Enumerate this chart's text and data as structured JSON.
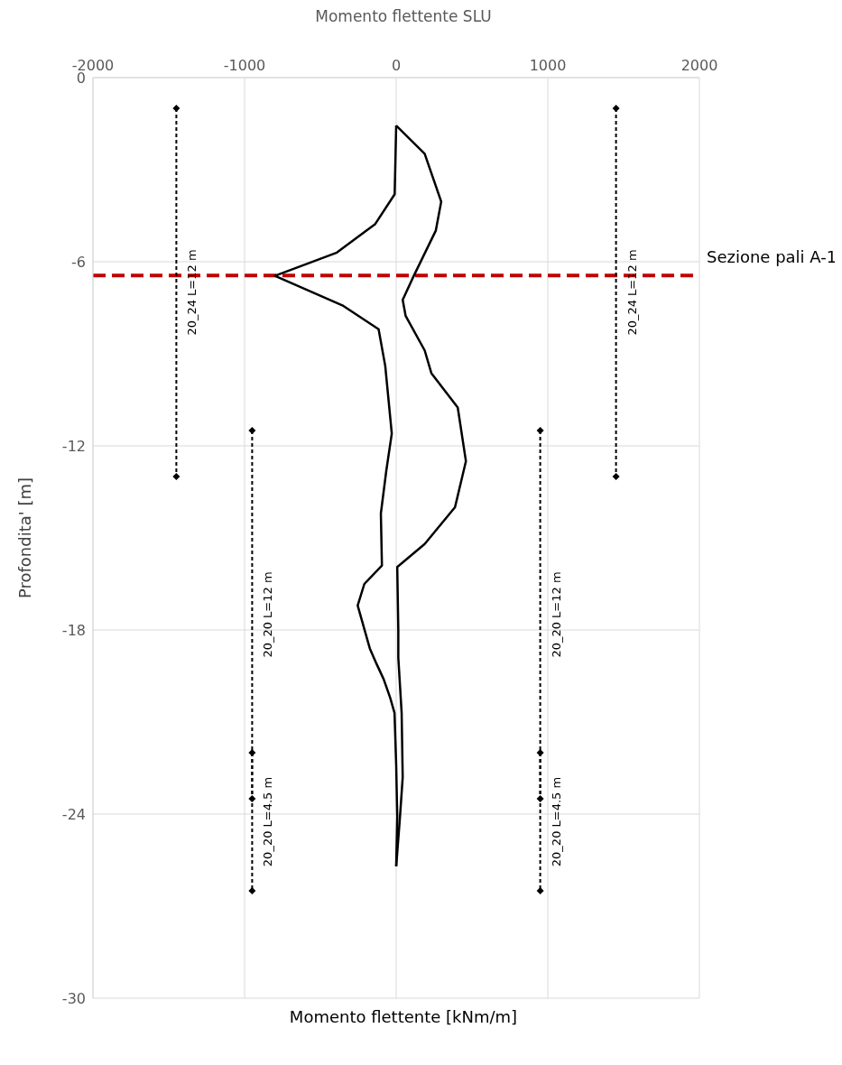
{
  "chart_data": {
    "type": "line",
    "title": "Momento flettente SLU",
    "xlabel": "Momento flettente [kNm/m]",
    "ylabel": "Profondita' [m]",
    "xlim": [
      -2000,
      2000
    ],
    "xticks": [
      -2000,
      -1000,
      0,
      1000,
      2000
    ],
    "ylim": [
      -30,
      0
    ],
    "yticks": [
      -30,
      -24,
      -18,
      -12,
      -6,
      0
    ],
    "grid": true,
    "ref_lines": [
      {
        "axis": "y",
        "value": -6.45,
        "label": "Sezione pali A-1",
        "color": "#c00000",
        "line_style": "dashed"
      }
    ],
    "series": [
      {
        "color": "#000000",
        "marker": "none",
        "line_style": "solid",
        "x": [
          0,
          -10,
          -138,
          -391,
          -800,
          -355,
          -116,
          -72,
          -29,
          -65,
          -101,
          -94,
          -210,
          -254,
          -174,
          -130,
          -83,
          -40,
          -11,
          0,
          7,
          0
        ],
        "values": [
          -1.56,
          -3.8,
          -4.77,
          -5.7,
          -6.46,
          -7.42,
          -8.2,
          -9.4,
          -11.6,
          -12.8,
          -14.2,
          -15.9,
          -16.5,
          -17.2,
          -18.6,
          -19.1,
          -19.6,
          -20.2,
          -20.7,
          -22.4,
          -24.1,
          -25.7
        ]
      },
      {
        "color": "#000000",
        "marker": "none",
        "line_style": "solid",
        "x": [
          0,
          188,
          297,
          261,
          116,
          43,
          62,
          188,
          232,
          406,
          460,
          388,
          188,
          7,
          14,
          14,
          36,
          43,
          25,
          0
        ],
        "values": [
          -1.56,
          -2.48,
          -4.04,
          -4.99,
          -6.46,
          -7.24,
          -7.76,
          -8.89,
          -9.63,
          -10.75,
          -12.5,
          -14.0,
          -15.2,
          -15.95,
          -18.0,
          -18.9,
          -20.7,
          -22.8,
          -24.1,
          -25.7
        ]
      },
      {
        "name": "20_24 L=12 m",
        "color": "#000000",
        "marker": "diamond",
        "line_style": "dashed",
        "x": [
          -1450,
          -1450
        ],
        "values": [
          -1,
          -13
        ]
      },
      {
        "name": "20_24 L=12 m",
        "color": "#000000",
        "marker": "diamond",
        "line_style": "dashed",
        "x": [
          1450,
          1450
        ],
        "values": [
          -1,
          -13
        ]
      },
      {
        "name": "20_20 L=12 m",
        "color": "#000000",
        "marker": "diamond",
        "line_style": "dashed",
        "x": [
          -950,
          -950
        ],
        "values": [
          -11.5,
          -23.5
        ]
      },
      {
        "name": "20_20 L=4.5 m",
        "color": "#000000",
        "marker": "diamond",
        "line_style": "dashed",
        "x": [
          -950,
          -950
        ],
        "values": [
          -22,
          -26.5
        ]
      },
      {
        "name": "20_20 L=12 m",
        "color": "#000000",
        "marker": "diamond",
        "line_style": "dashed",
        "x": [
          950,
          950
        ],
        "values": [
          -11.5,
          -23.5
        ]
      },
      {
        "name": "20_20 L=4.5 m",
        "color": "#000000",
        "marker": "diamond",
        "line_style": "dashed",
        "x": [
          950,
          950
        ],
        "values": [
          -22,
          -26.5
        ]
      }
    ]
  }
}
